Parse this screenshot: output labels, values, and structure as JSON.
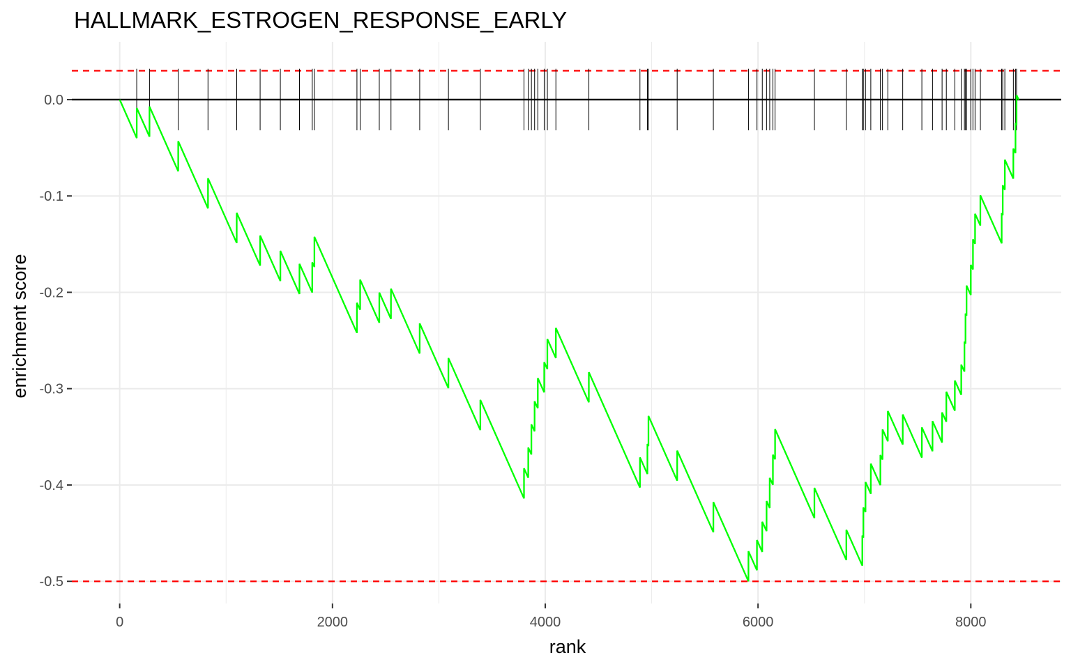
{
  "chart_data": {
    "type": "line",
    "title": "HALLMARK_ESTROGEN_RESPONSE_EARLY",
    "xlabel": "rank",
    "ylabel": "enrichment score",
    "xlim": [
      -450,
      8850
    ],
    "ylim": [
      -0.523,
      0.06
    ],
    "x_ticks": [
      0,
      2000,
      4000,
      6000,
      8000
    ],
    "x_tick_labels": [
      "0",
      "2000",
      "4000",
      "6000",
      "8000"
    ],
    "y_ticks": [
      0.0,
      -0.1,
      -0.2,
      -0.3,
      -0.4,
      -0.5
    ],
    "y_tick_labels": [
      "0.0",
      "-0.1",
      "-0.2",
      "-0.3",
      "-0.4",
      "-0.5"
    ],
    "grid": true,
    "legend": "none",
    "zero_line": 0.0,
    "threshold_lines": [
      0.03,
      -0.5
    ],
    "hit_marker_range": [
      0.0,
      0.032
    ],
    "colors": {
      "curve": "#00ff00",
      "threshold": "#ff0000",
      "hits": "#000000",
      "zero_line": "#000000",
      "grid": "#ebebeb"
    },
    "total_genes": 8450,
    "hits": [
      160,
      280,
      550,
      830,
      1100,
      1320,
      1510,
      1690,
      1810,
      1830,
      2230,
      2260,
      2440,
      2550,
      2820,
      3090,
      3390,
      3800,
      3840,
      3870,
      3900,
      3930,
      3990,
      4020,
      4100,
      4410,
      4890,
      4960,
      4970,
      5240,
      5580,
      5910,
      5990,
      6040,
      6080,
      6110,
      6140,
      6160,
      6530,
      6830,
      6980,
      6990,
      7010,
      7060,
      7150,
      7170,
      7220,
      7360,
      7540,
      7640,
      7730,
      7770,
      7850,
      7910,
      7940,
      7950,
      7960,
      8000,
      8020,
      8040,
      8090,
      8290,
      8300,
      8320,
      8400,
      8420,
      8430
    ],
    "es_at_min": -0.5,
    "es_peak": 0.03
  }
}
